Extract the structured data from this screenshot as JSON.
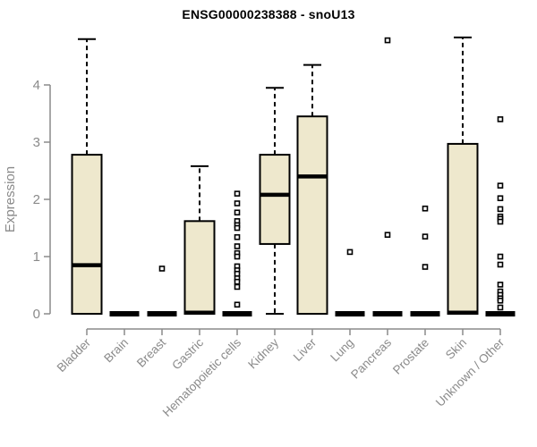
{
  "chart_data": {
    "type": "boxplot",
    "title": "ENSG00000238388 - snoU13",
    "ylabel": "Expression",
    "xlabel": "",
    "ylim": [
      0,
      4.9
    ],
    "yticks": [
      0,
      1,
      2,
      3,
      4
    ],
    "grid": false,
    "legend": "none",
    "categories": [
      "Bladder",
      "Brain",
      "Breast",
      "Gastric",
      "Hematopoietic cells",
      "Kidney",
      "Liver",
      "Lung",
      "Pancreas",
      "Prostate",
      "Skin",
      "Unknown / Other"
    ],
    "boxes": [
      {
        "category": "Bladder",
        "low": 0,
        "q1": 0,
        "median": 0.85,
        "q3": 2.78,
        "high": 4.8,
        "outliers": []
      },
      {
        "category": "Brain",
        "low": 0,
        "q1": 0,
        "median": 0,
        "q3": 0,
        "high": 0,
        "outliers": []
      },
      {
        "category": "Breast",
        "low": 0,
        "q1": 0,
        "median": 0,
        "q3": 0,
        "high": 0,
        "outliers": [
          0.79
        ]
      },
      {
        "category": "Gastric",
        "low": 0,
        "q1": 0,
        "median": 0.02,
        "q3": 1.62,
        "high": 2.58,
        "outliers": []
      },
      {
        "category": "Hematopoietic cells",
        "low": 0,
        "q1": 0,
        "median": 0,
        "q3": 0,
        "high": 0,
        "outliers": [
          2.1,
          1.93,
          1.77,
          1.62,
          1.55,
          1.5,
          1.34,
          1.18,
          1.06,
          1.0,
          0.83,
          0.76,
          0.7,
          0.62,
          0.56,
          0.47,
          0.16
        ]
      },
      {
        "category": "Kidney",
        "low": 0,
        "q1": 1.22,
        "median": 2.08,
        "q3": 2.78,
        "high": 3.95,
        "outliers": []
      },
      {
        "category": "Liver",
        "low": 0,
        "q1": 0,
        "median": 2.4,
        "q3": 3.45,
        "high": 4.35,
        "outliers": []
      },
      {
        "category": "Lung",
        "low": 0,
        "q1": 0,
        "median": 0,
        "q3": 0,
        "high": 0,
        "outliers": [
          1.08
        ]
      },
      {
        "category": "Pancreas",
        "low": 0,
        "q1": 0,
        "median": 0,
        "q3": 0,
        "high": 0,
        "outliers": [
          4.78,
          1.38
        ]
      },
      {
        "category": "Prostate",
        "low": 0,
        "q1": 0,
        "median": 0,
        "q3": 0,
        "high": 0,
        "outliers": [
          1.84,
          1.35,
          0.82
        ]
      },
      {
        "category": "Skin",
        "low": 0,
        "q1": 0,
        "median": 0.02,
        "q3": 2.97,
        "high": 4.83,
        "outliers": []
      },
      {
        "category": "Unknown / Other",
        "low": 0,
        "q1": 0,
        "median": 0,
        "q3": 0,
        "high": 0,
        "outliers": [
          3.4,
          2.24,
          2.02,
          1.83,
          1.7,
          1.66,
          1.61,
          1.0,
          0.86,
          0.51,
          0.39,
          0.33,
          0.27,
          0.23,
          0.11
        ]
      }
    ],
    "colors": {
      "box_fill": "#EEE8CD",
      "box_stroke": "#000000",
      "median": "#000000",
      "whisker": "#000000",
      "axis": "#8a8a8a",
      "tick_label": "#8a8a8a",
      "title": "#000000",
      "background": "#ffffff"
    }
  }
}
